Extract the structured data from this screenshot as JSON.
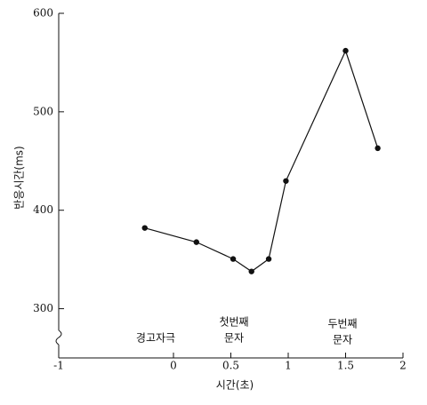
{
  "chart_data": {
    "type": "line",
    "x_label": "시간(초)",
    "y_label": "반응시간(ms)",
    "x": [
      -0.25,
      0.2,
      0.52,
      0.68,
      0.83,
      0.98,
      1.5,
      1.78
    ],
    "values": [
      382,
      367.6,
      350.5,
      337.8,
      350.5,
      429.7,
      562,
      463
    ],
    "color": "#111111",
    "xlim": [
      -1,
      2
    ],
    "xticks": [
      -1,
      0,
      0.5,
      1,
      1.5,
      2
    ],
    "ylim": [
      250,
      600
    ],
    "yticks": [
      300,
      400,
      500,
      600
    ],
    "annotations": [
      [
        "경고자극"
      ],
      [
        "첫번째",
        "문자"
      ],
      [
        "두번째",
        "문자"
      ]
    ]
  }
}
